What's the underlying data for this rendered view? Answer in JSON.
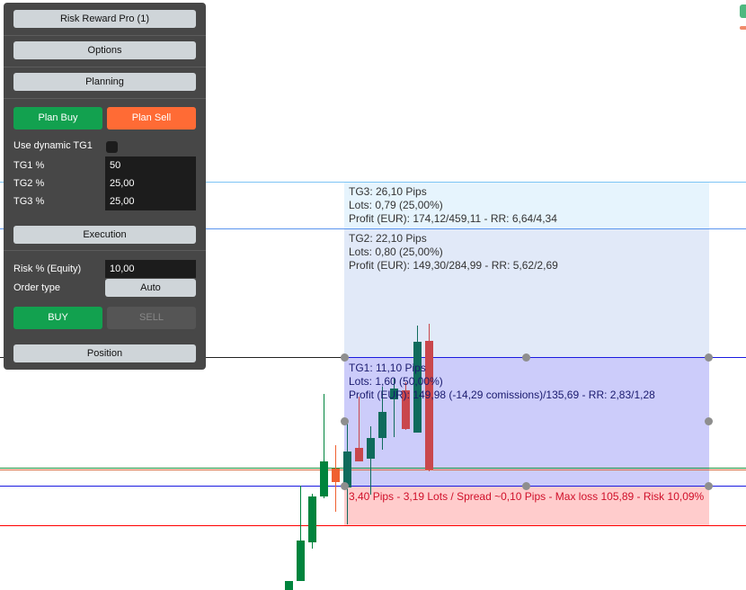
{
  "colors": {
    "buy": "#12a14f",
    "sell": "#ff6b35",
    "tg3_zone": "#e6f4fd",
    "tg2_zone": "#e1e9f8",
    "tg1_zone": "#ccccfa",
    "sl_zone": "#ffcccc",
    "candle_up": "#00843d",
    "candle_down": "#c9474c"
  },
  "panel": {
    "title_button": "Risk Reward Pro (1)",
    "options_button": "Options",
    "planning_button": "Planning",
    "plan_buy": "Plan Buy",
    "plan_sell": "Plan Sell",
    "dynamic_tg1_label": "Use dynamic TG1",
    "dynamic_tg1_checked": false,
    "tg1_label": "TG1 %",
    "tg1_value": "50",
    "tg2_label": "TG2 %",
    "tg2_value": "25,00",
    "tg3_label": "TG3 %",
    "tg3_value": "25,00",
    "execution_button": "Execution",
    "risk_label": "Risk % (Equity)",
    "risk_value": "10,00",
    "order_type_label": "Order type",
    "order_type_value": "Auto",
    "buy_button": "BUY",
    "sell_button": "SELL",
    "position_button": "Position"
  },
  "chart": {
    "tg3": {
      "line1": "TG3: 26,10 Pips",
      "line2": "Lots: 0,79 (25,00%)",
      "line3": "Profit (EUR): 174,12/459,11 - RR: 6,64/4,34"
    },
    "tg2": {
      "line1": "TG2: 22,10 Pips",
      "line2": "Lots: 0,80 (25,00%)",
      "line3": "Profit (EUR): 149,30/284,99 - RR: 5,62/2,69"
    },
    "tg1": {
      "line1": "TG1: 11,10 Pips",
      "line2": "Lots: 1,60 (50,00%)",
      "line3": "Profit (EUR): 149,98 (-14,29 comissions)/135,69 - RR: 2,83/1,28"
    },
    "sl": {
      "line1": "3,40 Pips - 3,19 Lots / Spread ~0,10 Pips - Max loss 105,89 - Risk 10,09%"
    }
  }
}
